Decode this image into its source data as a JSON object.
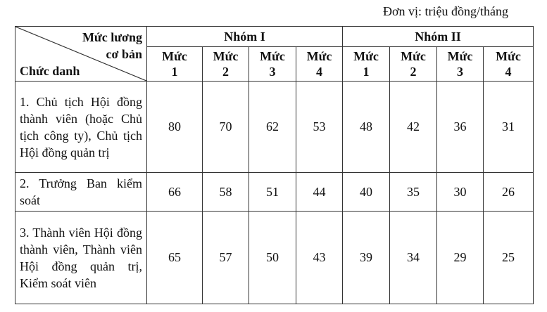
{
  "unit": "Đơn vị: triệu đồng/tháng",
  "header": {
    "corner_top_line1": "Mức lương",
    "corner_top_line2": "cơ bản",
    "corner_bottom": "Chức danh",
    "groups": [
      "Nhóm I",
      "Nhóm II"
    ],
    "levels": [
      {
        "word": "Mức",
        "num": "1"
      },
      {
        "word": "Mức",
        "num": "2"
      },
      {
        "word": "Mức",
        "num": "3"
      },
      {
        "word": "Mức",
        "num": "4"
      },
      {
        "word": "Mức",
        "num": "1"
      },
      {
        "word": "Mức",
        "num": "2"
      },
      {
        "word": "Mức",
        "num": "3"
      },
      {
        "word": "Mức",
        "num": "4"
      }
    ]
  },
  "rows": [
    {
      "title": "1. Chủ tịch Hội đồng thành viên (hoặc Chủ tịch công ty), Chủ tịch Hội đồng quản trị",
      "values": [
        "80",
        "70",
        "62",
        "53",
        "48",
        "42",
        "36",
        "31"
      ]
    },
    {
      "title": "2. Trưởng Ban kiểm soát",
      "values": [
        "66",
        "58",
        "51",
        "44",
        "40",
        "35",
        "30",
        "26"
      ]
    },
    {
      "title": "3. Thành viên Hội đồng thành viên, Thành viên Hội đồng quản trị, Kiểm soát viên",
      "values": [
        "65",
        "57",
        "50",
        "43",
        "39",
        "34",
        "29",
        "25"
      ]
    }
  ]
}
